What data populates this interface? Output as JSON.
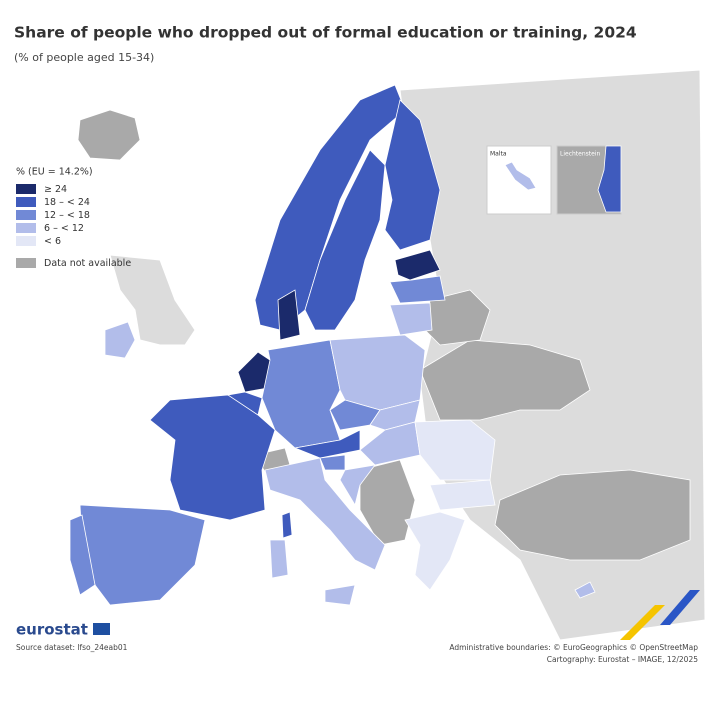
{
  "header": {
    "title": "Share of people who dropped out of formal education or training, 2024",
    "subtitle": "(% of people aged 15-34)"
  },
  "legend": {
    "title": "% (EU = 14.2%)",
    "items": [
      {
        "label": "≥ 24",
        "color": "#1b2a6b"
      },
      {
        "label": "18 – < 24",
        "color": "#3f5bbd"
      },
      {
        "label": "12 – < 18",
        "color": "#7189d6"
      },
      {
        "label": "6 – < 12",
        "color": "#b2bdea"
      },
      {
        "label": "< 6",
        "color": "#e3e7f6"
      },
      {
        "label": "Data not available",
        "color": "#a9a9a9"
      }
    ]
  },
  "insets": [
    "Malta",
    "Liechtenstein"
  ],
  "footer": {
    "logo": "eurostat",
    "source": "Source dataset: lfso_24eab01",
    "credits": [
      "Administrative boundaries: © EuroGeographics © OpenStreetMap",
      "Cartography: Eurostat – IMAGE, 12/2025"
    ]
  }
}
